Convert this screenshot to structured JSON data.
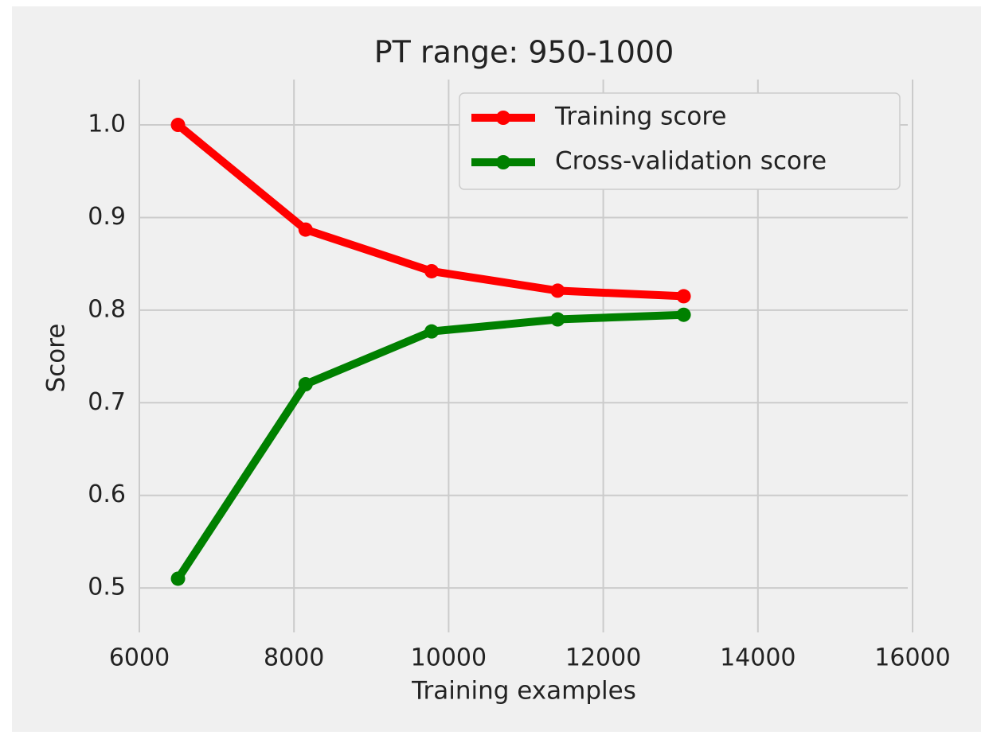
{
  "chart_data": {
    "type": "line",
    "title": "PT range: 950-1000",
    "xlabel": "Training examples",
    "ylabel": "Score",
    "x": [
      6500,
      8150,
      9780,
      11410,
      13040
    ],
    "series": [
      {
        "name": "Training score",
        "color": "#ff0000",
        "values": [
          1.0,
          0.887,
          0.842,
          0.821,
          0.815
        ]
      },
      {
        "name": "Cross-validation score",
        "color": "#008000",
        "values": [
          0.51,
          0.72,
          0.777,
          0.79,
          0.795
        ]
      }
    ],
    "xlim": [
      6000,
      16000
    ],
    "xticks": [
      6000,
      8000,
      10000,
      12000,
      14000,
      16000
    ],
    "ylim": [
      0.452,
      1.049
    ],
    "yticks": [
      0.5,
      0.6,
      0.7,
      0.8,
      0.9,
      {
        "value": 1,
        "label": "1.0"
      }
    ],
    "grid": true,
    "legend": "upper right"
  }
}
